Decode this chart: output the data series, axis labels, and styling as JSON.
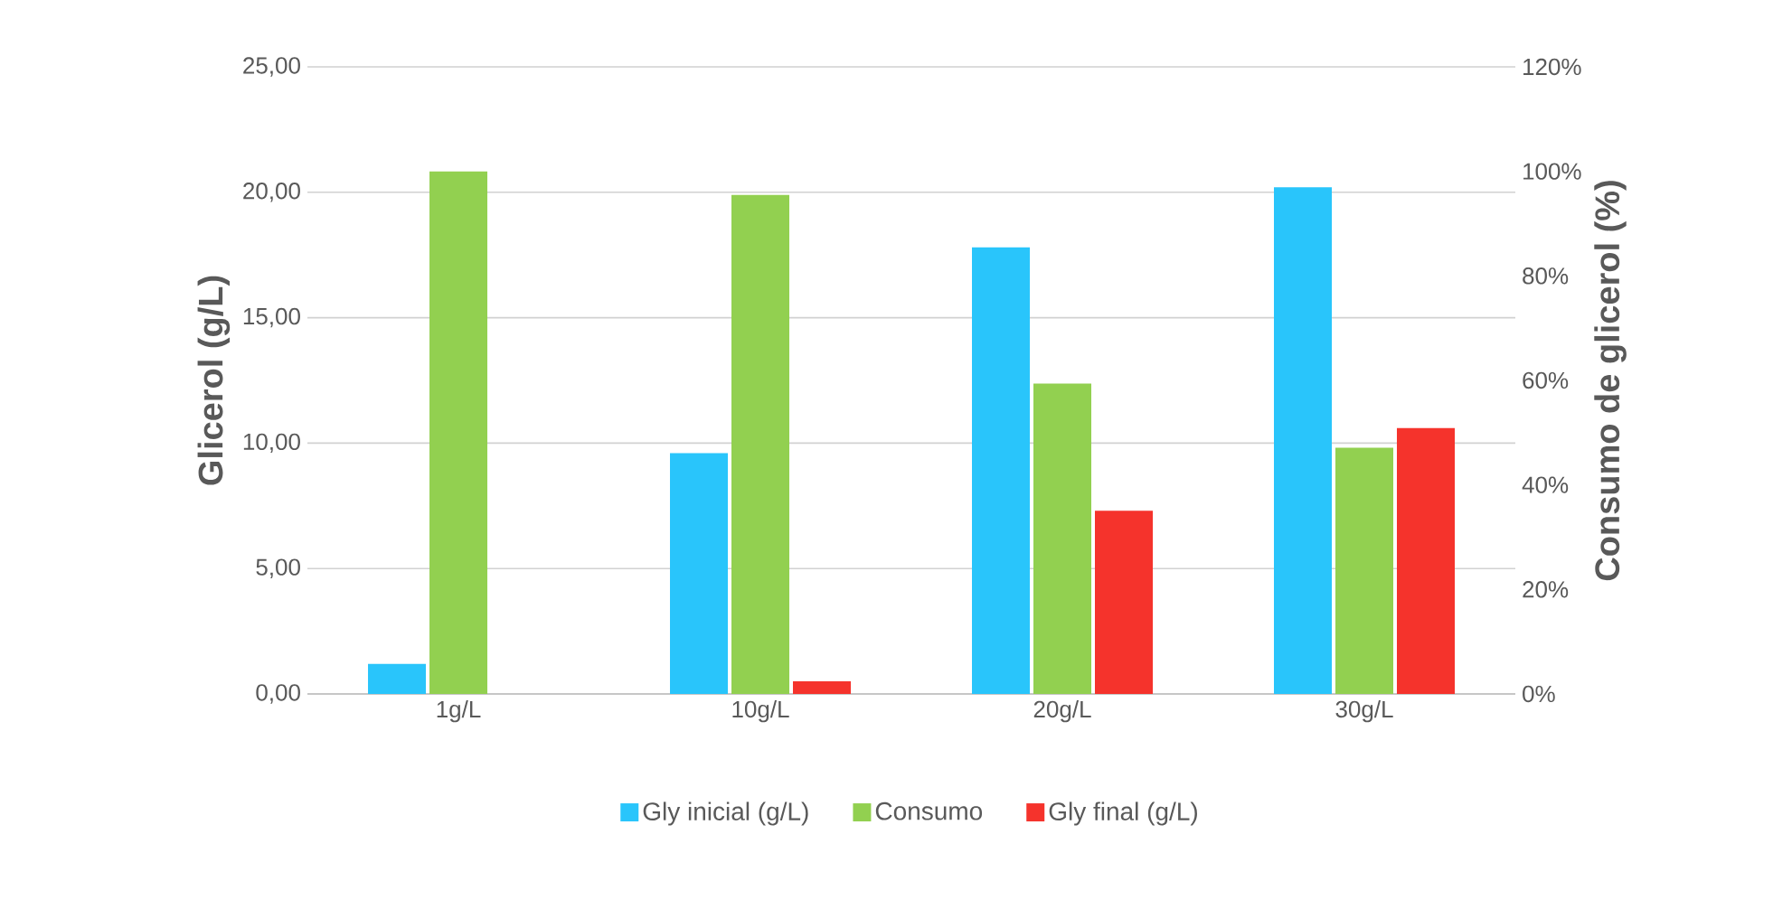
{
  "chart_data": {
    "type": "bar",
    "ylabel": "Glicerol (g/L)",
    "y2label": "Consumo de glicerol (%)",
    "categories": [
      "1g/L",
      "10g/L",
      "20g/L",
      "30g/L"
    ],
    "series": [
      {
        "name": "Gly inicial (g/L)",
        "color": "#29c5fb",
        "values": [
          1.2,
          9.6,
          17.8,
          20.2
        ]
      },
      {
        "name": "Consumo",
        "color": "#92d050",
        "values": [
          100,
          95.5,
          59.4,
          47.1
        ],
        "axis": "y2"
      },
      {
        "name": "Gly final (g/L)",
        "color": "#f5332c",
        "values": [
          null,
          0.5,
          7.3,
          10.6
        ]
      }
    ],
    "ylim": [
      0,
      25
    ],
    "yticks": [
      {
        "value": 0,
        "label": "0,00"
      },
      {
        "value": 5,
        "label": "5,00"
      },
      {
        "value": 10,
        "label": "10,00"
      },
      {
        "value": 15,
        "label": "15,00"
      },
      {
        "value": 20,
        "label": "20,00"
      },
      {
        "value": 25,
        "label": "25,00"
      }
    ],
    "y2lim": [
      0,
      120
    ],
    "y2ticks": [
      {
        "value": 0,
        "label": "0%"
      },
      {
        "value": 20,
        "label": "20%"
      },
      {
        "value": 40,
        "label": "40%"
      },
      {
        "value": 60,
        "label": "60%"
      },
      {
        "value": 80,
        "label": "80%"
      },
      {
        "value": 100,
        "label": "100%"
      },
      {
        "value": 120,
        "label": "120%"
      }
    ],
    "grid": "y",
    "legend": "bottom"
  }
}
